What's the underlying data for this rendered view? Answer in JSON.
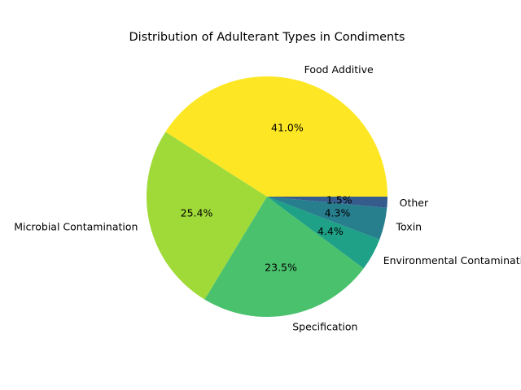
{
  "chart_data": {
    "type": "pie",
    "title": "Distribution of Adulterant Types in Condiments",
    "start_angle_deg": 0,
    "direction": "counterclockwise",
    "slices": [
      {
        "label": "Food Additive",
        "percent": 41.0,
        "pct_label": "41.0%",
        "color": "#fde725"
      },
      {
        "label": "Microbial Contamination",
        "percent": 25.4,
        "pct_label": "25.4%",
        "color": "#a0da39"
      },
      {
        "label": "Specification",
        "percent": 23.5,
        "pct_label": "23.5%",
        "color": "#4ac16d"
      },
      {
        "label": "Environmental Contamination",
        "percent": 4.4,
        "pct_label": "4.4%",
        "color": "#1fa187"
      },
      {
        "label": "Toxin",
        "percent": 4.3,
        "pct_label": "4.3%",
        "color": "#277f8e"
      },
      {
        "label": "Other",
        "percent": 1.5,
        "pct_label": "1.5%",
        "color": "#365c8d"
      }
    ]
  }
}
